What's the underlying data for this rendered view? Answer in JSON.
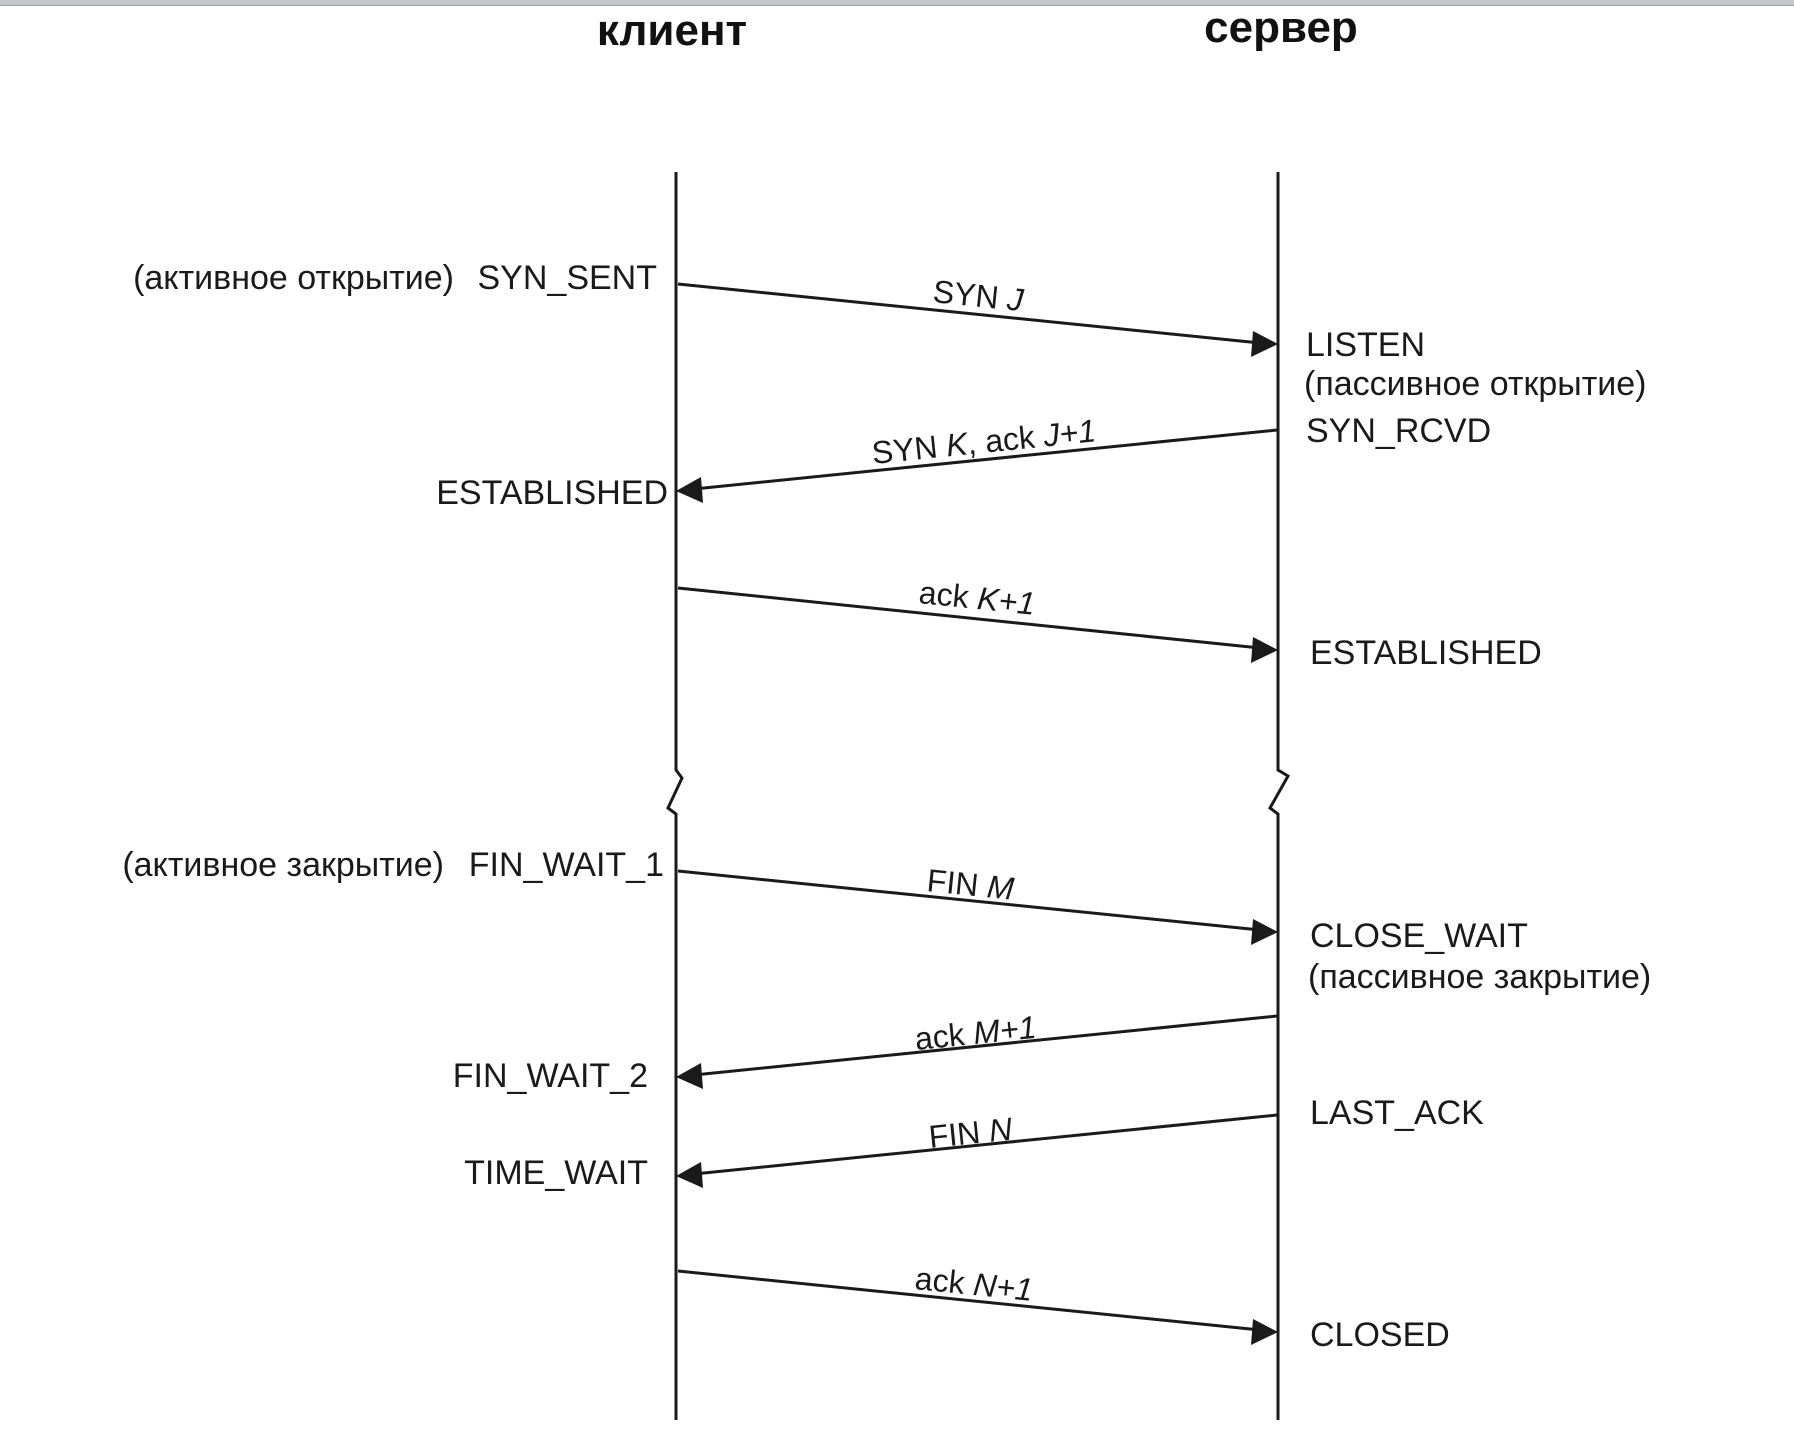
{
  "headers": {
    "client": "клиент",
    "server": "сервер"
  },
  "open_phase": {
    "client_active_open": "(активное открытие)",
    "client_syn_sent": "SYN_SENT",
    "client_established": "ESTABLISHED",
    "server_listen": "LISTEN",
    "server_passive_open": "(пассивное открытие)",
    "server_syn_rcvd": "SYN_RCVD",
    "server_established": "ESTABLISHED",
    "msg_syn": {
      "prefix": "SYN ",
      "var": "J"
    },
    "msg_synack": {
      "prefix": "SYN ",
      "var": "K",
      "mid": ", ack ",
      "var2": "J+1"
    },
    "msg_ack": {
      "prefix": "ack ",
      "var": "K+1"
    }
  },
  "close_phase": {
    "client_active_close": "(активное закрытие)",
    "client_fin_wait_1": "FIN_WAIT_1",
    "client_fin_wait_2": "FIN_WAIT_2",
    "client_time_wait": "TIME_WAIT",
    "server_close_wait": "CLOSE_WAIT",
    "server_passive_close": "(пассивное закрытие)",
    "server_last_ack": "LAST_ACK",
    "server_closed": "CLOSED",
    "msg_fin_m": {
      "prefix": "FIN ",
      "var": "M"
    },
    "msg_ack_m": {
      "prefix": "ack ",
      "var": "M+1"
    },
    "msg_fin_n": {
      "prefix": "FIN ",
      "var": "N"
    },
    "msg_ack_n": {
      "prefix": "ack ",
      "var": "N+1"
    }
  }
}
